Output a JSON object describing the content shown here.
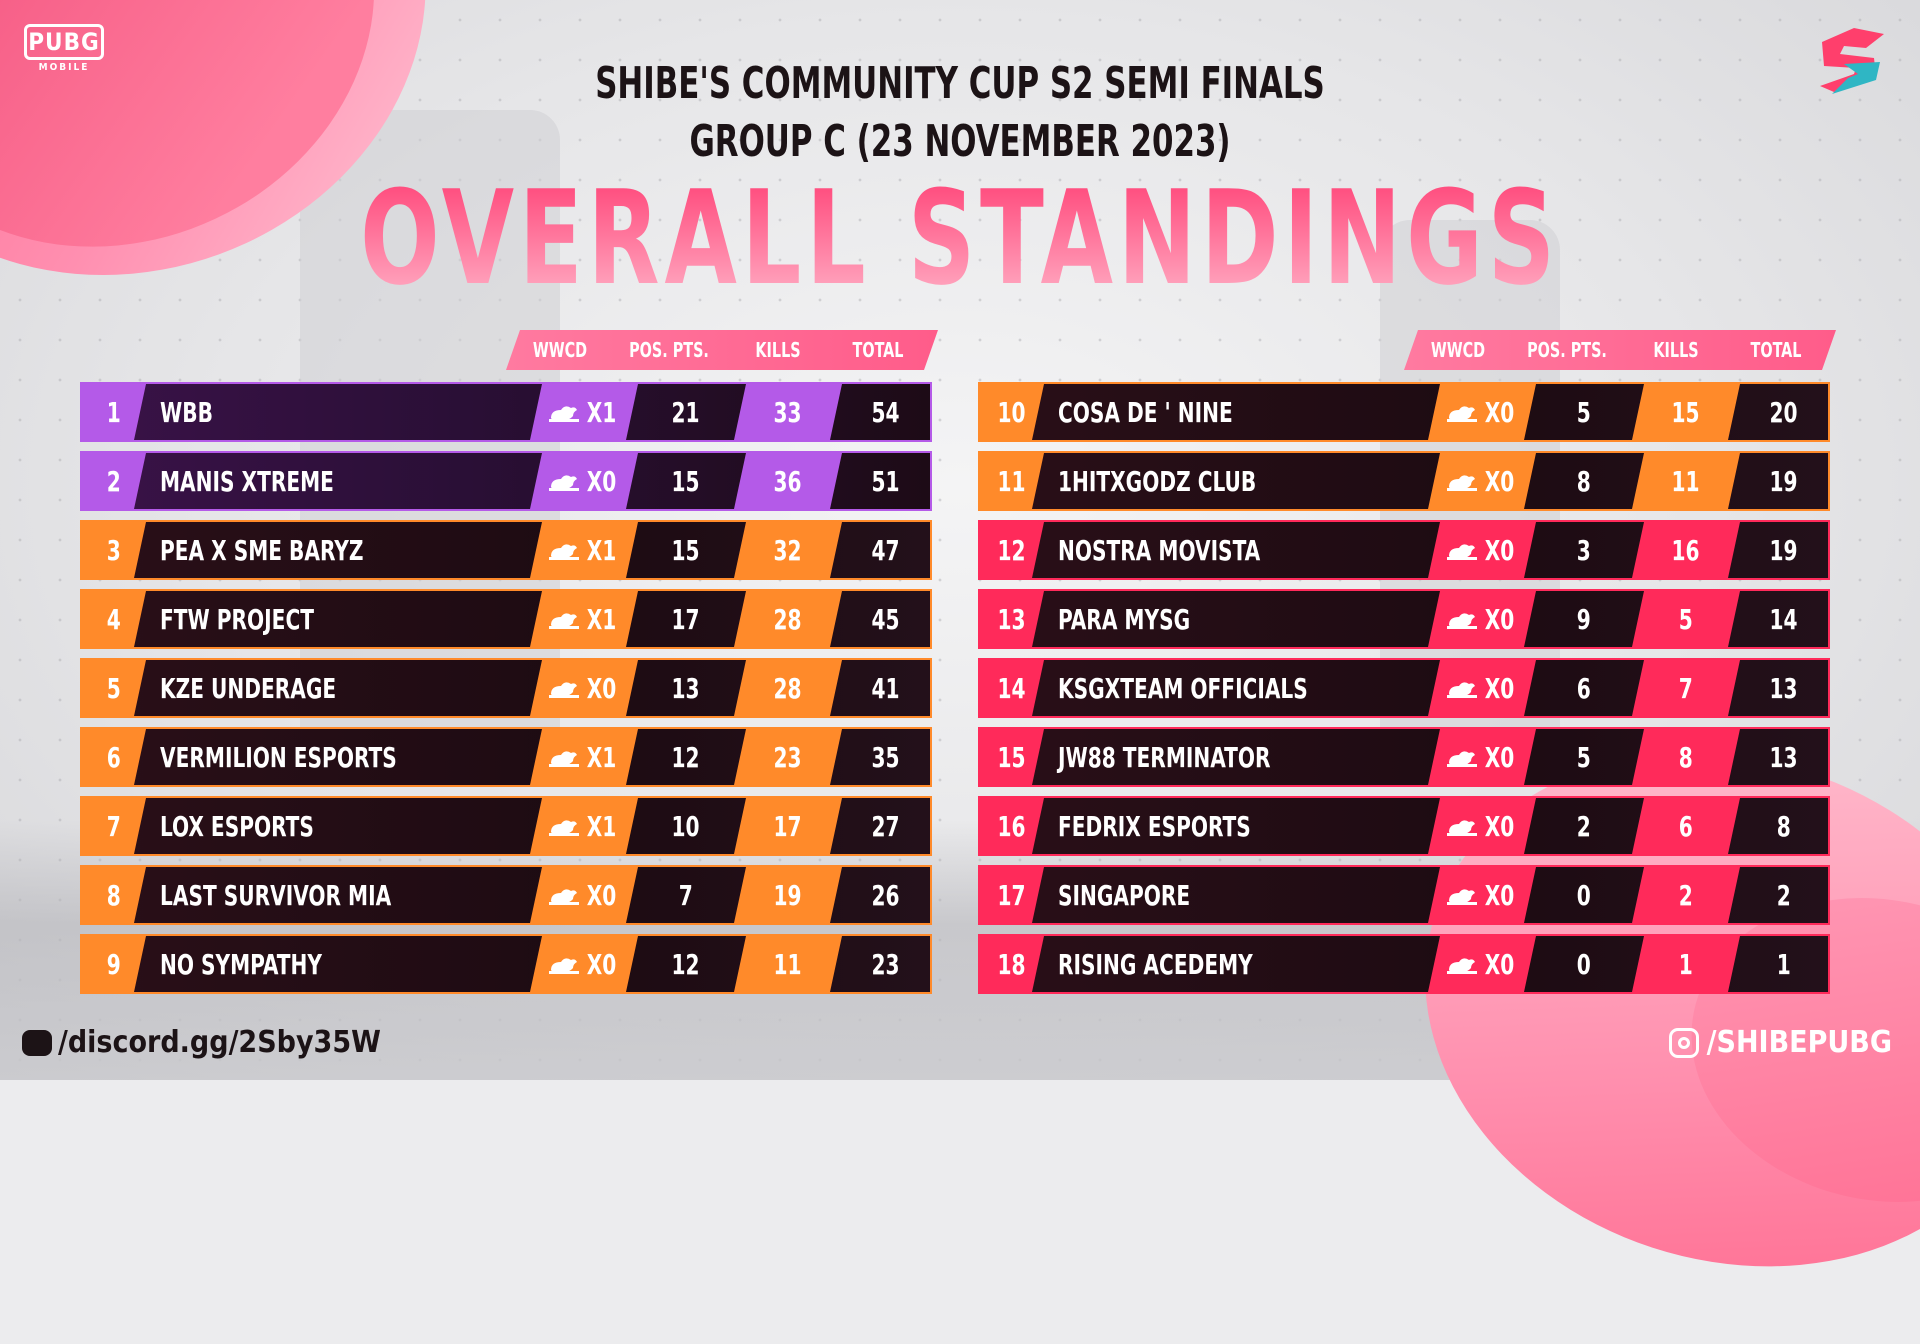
{
  "header": {
    "logo_text": "PUBG",
    "logo_sub": "MOBILE",
    "title_line1": "SHIBE'S COMMUNITY CUP S2 SEMI FINALS",
    "title_line2": "GROUP C (23 NOVEMBER 2023)",
    "big_title": "OVERALL STANDINGS"
  },
  "columns": {
    "wwcd": "WWCD",
    "pos_pts": "POS. PTS.",
    "kills": "KILLS",
    "total": "TOTAL"
  },
  "colors": {
    "purple": "#b45ae8",
    "orange": "#ff8a2a",
    "red": "#ff2a5a",
    "row_dark": "#1d0b12"
  },
  "left_table": [
    {
      "rank": "1",
      "team": "WBB",
      "wwcd": "X1",
      "pos": "21",
      "kills": "33",
      "total": "54",
      "tier": "purple"
    },
    {
      "rank": "2",
      "team": "MANIS XTREME",
      "wwcd": "X0",
      "pos": "15",
      "kills": "36",
      "total": "51",
      "tier": "purple"
    },
    {
      "rank": "3",
      "team": "PEA X SME BARYZ",
      "wwcd": "X1",
      "pos": "15",
      "kills": "32",
      "total": "47",
      "tier": "orange"
    },
    {
      "rank": "4",
      "team": "FTW PROJECT",
      "wwcd": "X1",
      "pos": "17",
      "kills": "28",
      "total": "45",
      "tier": "orange"
    },
    {
      "rank": "5",
      "team": "KZE UNDERAGE",
      "wwcd": "X0",
      "pos": "13",
      "kills": "28",
      "total": "41",
      "tier": "orange"
    },
    {
      "rank": "6",
      "team": "VERMILION ESPORTS",
      "wwcd": "X1",
      "pos": "12",
      "kills": "23",
      "total": "35",
      "tier": "orange"
    },
    {
      "rank": "7",
      "team": "LOX ESPORTS",
      "wwcd": "X1",
      "pos": "10",
      "kills": "17",
      "total": "27",
      "tier": "orange"
    },
    {
      "rank": "8",
      "team": "LAST SURVIVOR MIA",
      "wwcd": "X0",
      "pos": "7",
      "kills": "19",
      "total": "26",
      "tier": "orange"
    },
    {
      "rank": "9",
      "team": "NO SYMPATHY",
      "wwcd": "X0",
      "pos": "12",
      "kills": "11",
      "total": "23",
      "tier": "orange"
    }
  ],
  "right_table": [
    {
      "rank": "10",
      "team": "COSA DE ' NINE",
      "wwcd": "X0",
      "pos": "5",
      "kills": "15",
      "total": "20",
      "tier": "orange"
    },
    {
      "rank": "11",
      "team": "1HITXGODZ CLUB",
      "wwcd": "X0",
      "pos": "8",
      "kills": "11",
      "total": "19",
      "tier": "orange"
    },
    {
      "rank": "12",
      "team": "NOSTRA MOVISTA",
      "wwcd": "X0",
      "pos": "3",
      "kills": "16",
      "total": "19",
      "tier": "red"
    },
    {
      "rank": "13",
      "team": "PARA MYSG",
      "wwcd": "X0",
      "pos": "9",
      "kills": "5",
      "total": "14",
      "tier": "red"
    },
    {
      "rank": "14",
      "team": "KSGXTEAM OFFICIALS",
      "wwcd": "X0",
      "pos": "6",
      "kills": "7",
      "total": "13",
      "tier": "red"
    },
    {
      "rank": "15",
      "team": "JW88 TERMINATOR",
      "wwcd": "X0",
      "pos": "5",
      "kills": "8",
      "total": "13",
      "tier": "red"
    },
    {
      "rank": "16",
      "team": "FEDRIX ESPORTS",
      "wwcd": "X0",
      "pos": "2",
      "kills": "6",
      "total": "8",
      "tier": "red"
    },
    {
      "rank": "17",
      "team": "SINGAPORE",
      "wwcd": "X0",
      "pos": "0",
      "kills": "2",
      "total": "2",
      "tier": "red"
    },
    {
      "rank": "18",
      "team": "RISING ACEDEMY",
      "wwcd": "X0",
      "pos": "0",
      "kills": "1",
      "total": "1",
      "tier": "red"
    }
  ],
  "footer": {
    "discord": "/discord.gg/2Sby35W",
    "instagram": "/SHIBEPUBG"
  }
}
